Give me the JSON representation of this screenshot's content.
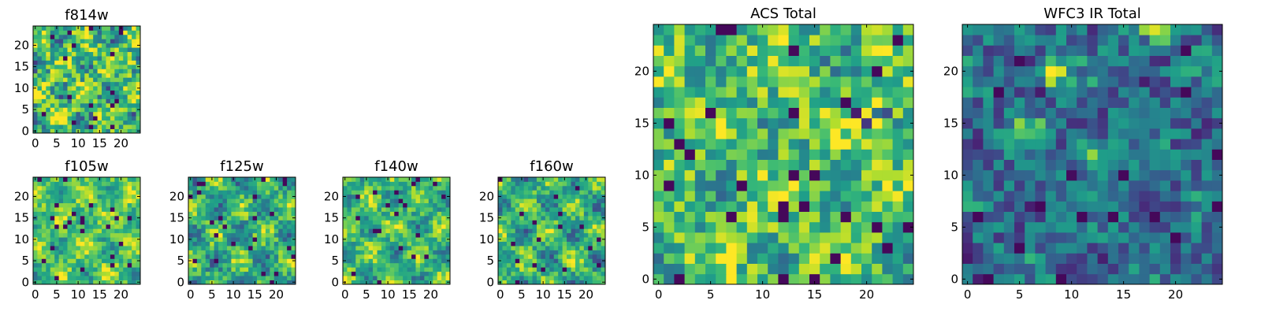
{
  "chart_data": [
    {
      "type": "heatmap",
      "title": "f814w",
      "xticks": [
        "0",
        "5",
        "10",
        "15",
        "20"
      ],
      "yticks": [
        "0",
        "5",
        "10",
        "15",
        "20"
      ],
      "xlim": [
        -0.5,
        24.5
      ],
      "ylim": [
        -0.5,
        24.5
      ],
      "grid": false,
      "colormap": "viridis",
      "n": 25,
      "z_seed": 11,
      "z_base": 0.68,
      "z_amp": 0.22,
      "z_noise": 0.3,
      "hotspots": [
        {
          "x": 22,
          "y": 16,
          "strength": 0.35
        }
      ]
    },
    {
      "type": "heatmap",
      "title": "f105w",
      "xticks": [
        "0",
        "5",
        "10",
        "15",
        "20"
      ],
      "yticks": [
        "0",
        "5",
        "10",
        "15",
        "20"
      ],
      "xlim": [
        -0.5,
        24.5
      ],
      "ylim": [
        -0.5,
        24.5
      ],
      "grid": false,
      "colormap": "viridis",
      "n": 25,
      "z_seed": 23,
      "z_base": 0.72,
      "z_amp": 0.2,
      "z_noise": 0.18,
      "hotspots": []
    },
    {
      "type": "heatmap",
      "title": "f125w",
      "xticks": [
        "0",
        "5",
        "10",
        "15",
        "20"
      ],
      "yticks": [
        "0",
        "5",
        "10",
        "15",
        "20"
      ],
      "xlim": [
        -0.5,
        24.5
      ],
      "ylim": [
        -0.5,
        24.5
      ],
      "grid": false,
      "colormap": "viridis",
      "n": 25,
      "z_seed": 37,
      "z_base": 0.62,
      "z_amp": 0.25,
      "z_noise": 0.2,
      "hotspots": []
    },
    {
      "type": "heatmap",
      "title": "f140w",
      "xticks": [
        "0",
        "5",
        "10",
        "15",
        "20"
      ],
      "yticks": [
        "0",
        "5",
        "10",
        "15",
        "20"
      ],
      "xlim": [
        -0.5,
        24.5
      ],
      "ylim": [
        -0.5,
        24.5
      ],
      "grid": false,
      "colormap": "viridis",
      "n": 25,
      "z_seed": 41,
      "z_base": 0.66,
      "z_amp": 0.22,
      "z_noise": 0.18,
      "hotspots": []
    },
    {
      "type": "heatmap",
      "title": "f160w",
      "xticks": [
        "0",
        "5",
        "10",
        "15",
        "20"
      ],
      "yticks": [
        "0",
        "5",
        "10",
        "15",
        "20"
      ],
      "xlim": [
        -0.5,
        24.5
      ],
      "ylim": [
        -0.5,
        24.5
      ],
      "grid": false,
      "colormap": "viridis",
      "n": 25,
      "z_seed": 53,
      "z_base": 0.64,
      "z_amp": 0.24,
      "z_noise": 0.2,
      "hotspots": []
    },
    {
      "type": "heatmap",
      "title": "ACS Total",
      "xticks": [
        "0",
        "5",
        "10",
        "15",
        "20"
      ],
      "yticks": [
        "0",
        "5",
        "10",
        "15",
        "20"
      ],
      "xlim": [
        -0.5,
        24.5
      ],
      "ylim": [
        -0.5,
        24.5
      ],
      "grid": false,
      "colormap": "viridis",
      "n": 25,
      "z_seed": 67,
      "z_base": 0.7,
      "z_amp": 0.15,
      "z_noise": 0.26,
      "hotspots": [
        {
          "x": 21,
          "y": 16,
          "strength": 0.35
        }
      ]
    },
    {
      "type": "heatmap",
      "title": "WFC3 IR Total",
      "xticks": [
        "0",
        "5",
        "10",
        "15",
        "20"
      ],
      "yticks": [
        "0",
        "5",
        "10",
        "15",
        "20"
      ],
      "xlim": [
        -0.5,
        24.5
      ],
      "ylim": [
        -0.5,
        24.5
      ],
      "grid": false,
      "colormap": "viridis",
      "n": 25,
      "z_seed": 79,
      "z_base": 0.36,
      "z_amp": 0.1,
      "z_noise": 0.22,
      "hotspots": [
        {
          "x": 18,
          "y": 24,
          "strength": 0.6
        },
        {
          "x": 8,
          "y": 20,
          "strength": 0.55
        },
        {
          "x": 12,
          "y": 12,
          "strength": 0.45
        },
        {
          "x": 6,
          "y": 14,
          "strength": 0.45
        }
      ]
    }
  ]
}
